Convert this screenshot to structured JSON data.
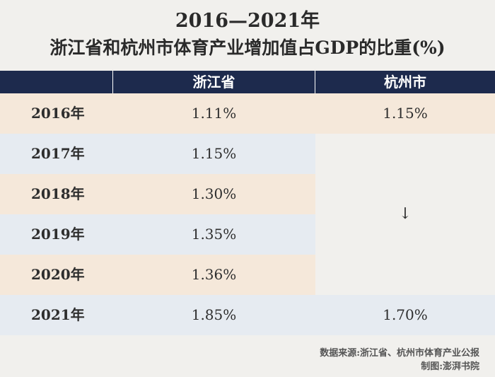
{
  "title": {
    "line1": "2016—2021年",
    "line2": "浙江省和杭州市体育产业增加值占GDP的比重(%)"
  },
  "footer": {
    "source": "数据来源:浙江省、杭州市体育产业公报",
    "credit": "制图:澎湃书院"
  },
  "chart_data": {
    "type": "table",
    "columns": [
      "",
      "浙江省",
      "杭州市"
    ],
    "rows": [
      {
        "year": "2016年",
        "zhejiang": "1.11%",
        "hangzhou": "1.15%"
      },
      {
        "year": "2017年",
        "zhejiang": "1.15%",
        "hangzhou": ""
      },
      {
        "year": "2018年",
        "zhejiang": "1.30%",
        "hangzhou": ""
      },
      {
        "year": "2019年",
        "zhejiang": "1.35%",
        "hangzhou": ""
      },
      {
        "year": "2020年",
        "zhejiang": "1.36%",
        "hangzhou": ""
      },
      {
        "year": "2021年",
        "zhejiang": "1.85%",
        "hangzhou": "1.70%"
      }
    ],
    "hangzhou_gap_marker": "↓",
    "colors": {
      "header": "#1d2a4d",
      "row_odd": "#f5e8da",
      "row_even": "#e6ebf1",
      "background": "#f1f0ed"
    }
  }
}
